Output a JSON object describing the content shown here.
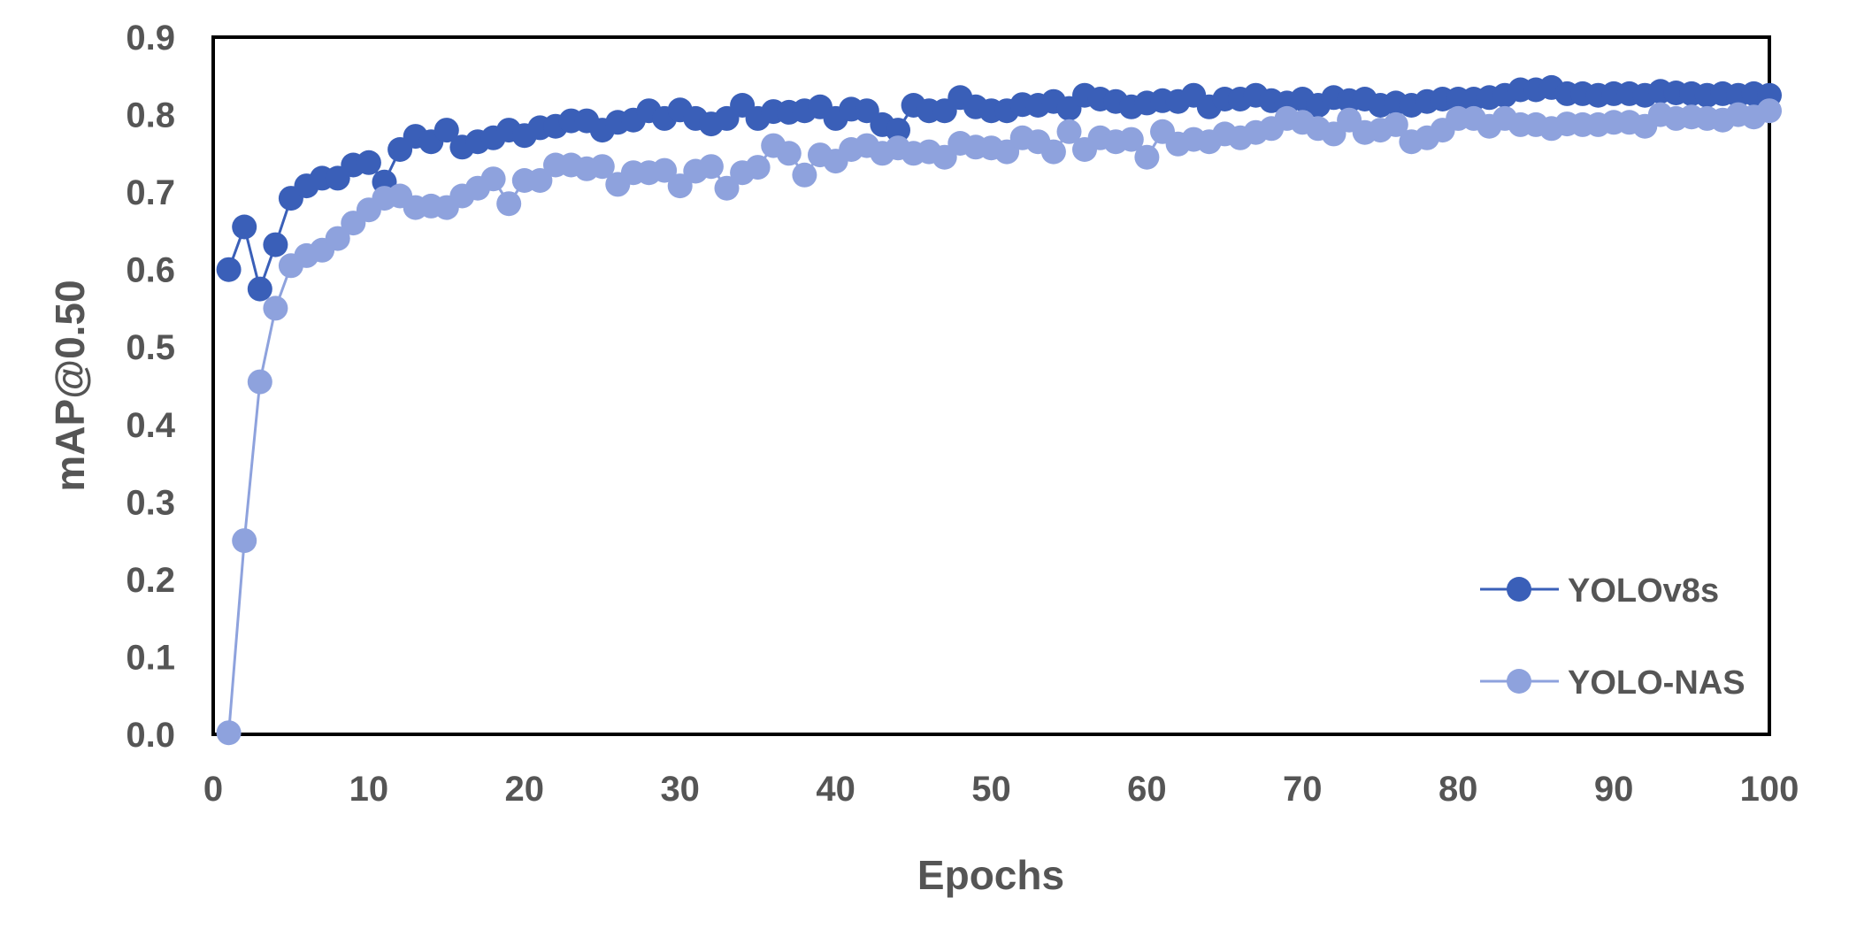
{
  "chart_data": {
    "type": "line",
    "xlabel": "Epochs",
    "ylabel": "mAP@0.50",
    "xlim": [
      0,
      100
    ],
    "ylim": [
      0,
      0.9
    ],
    "xticks": [
      "0",
      "10",
      "20",
      "30",
      "40",
      "50",
      "60",
      "70",
      "80",
      "90",
      "100"
    ],
    "yticks": [
      "0.0",
      "0.1",
      "0.2",
      "0.3",
      "0.4",
      "0.5",
      "0.6",
      "0.7",
      "0.8",
      "0.9"
    ],
    "legend_position": "bottom-right",
    "grid": false,
    "series": [
      {
        "name": "YOLOv8s",
        "color": "#3a5fb8",
        "x": [
          1,
          2,
          3,
          4,
          5,
          6,
          7,
          8,
          9,
          10,
          11,
          12,
          13,
          14,
          15,
          16,
          17,
          18,
          19,
          20,
          21,
          22,
          23,
          24,
          25,
          26,
          27,
          28,
          29,
          30,
          31,
          32,
          33,
          34,
          35,
          36,
          37,
          38,
          39,
          40,
          41,
          42,
          43,
          44,
          45,
          46,
          47,
          48,
          49,
          50,
          51,
          52,
          53,
          54,
          55,
          56,
          57,
          58,
          59,
          60,
          61,
          62,
          63,
          64,
          65,
          66,
          67,
          68,
          69,
          70,
          71,
          72,
          73,
          74,
          75,
          76,
          77,
          78,
          79,
          80,
          81,
          82,
          83,
          84,
          85,
          86,
          87,
          88,
          89,
          90,
          91,
          92,
          93,
          94,
          95,
          96,
          97,
          98,
          99,
          100
        ],
        "y": [
          0.6,
          0.655,
          0.575,
          0.632,
          0.692,
          0.708,
          0.718,
          0.718,
          0.735,
          0.738,
          0.713,
          0.755,
          0.772,
          0.765,
          0.78,
          0.758,
          0.765,
          0.77,
          0.78,
          0.773,
          0.783,
          0.785,
          0.792,
          0.792,
          0.78,
          0.79,
          0.793,
          0.805,
          0.795,
          0.806,
          0.795,
          0.788,
          0.795,
          0.812,
          0.795,
          0.804,
          0.803,
          0.805,
          0.81,
          0.795,
          0.807,
          0.805,
          0.787,
          0.78,
          0.812,
          0.805,
          0.805,
          0.822,
          0.81,
          0.805,
          0.805,
          0.813,
          0.812,
          0.817,
          0.808,
          0.825,
          0.82,
          0.817,
          0.81,
          0.815,
          0.818,
          0.817,
          0.825,
          0.81,
          0.82,
          0.82,
          0.825,
          0.818,
          0.815,
          0.82,
          0.812,
          0.822,
          0.818,
          0.82,
          0.812,
          0.815,
          0.812,
          0.817,
          0.82,
          0.82,
          0.82,
          0.822,
          0.825,
          0.832,
          0.832,
          0.835,
          0.827,
          0.827,
          0.825,
          0.827,
          0.827,
          0.825,
          0.83,
          0.828,
          0.827,
          0.825,
          0.827,
          0.825,
          0.827,
          0.825
        ]
      },
      {
        "name": "YOLO-NAS",
        "color": "#8ea2dd",
        "x": [
          1,
          2,
          3,
          4,
          5,
          6,
          7,
          8,
          9,
          10,
          11,
          12,
          13,
          14,
          15,
          16,
          17,
          18,
          19,
          20,
          21,
          22,
          23,
          24,
          25,
          26,
          27,
          28,
          29,
          30,
          31,
          32,
          33,
          34,
          35,
          36,
          37,
          38,
          39,
          40,
          41,
          42,
          43,
          44,
          45,
          46,
          47,
          48,
          49,
          50,
          51,
          52,
          53,
          54,
          55,
          56,
          57,
          58,
          59,
          60,
          61,
          62,
          63,
          64,
          65,
          66,
          67,
          68,
          69,
          70,
          71,
          72,
          73,
          74,
          75,
          76,
          77,
          78,
          79,
          80,
          81,
          82,
          83,
          84,
          85,
          86,
          87,
          88,
          89,
          90,
          91,
          92,
          93,
          94,
          95,
          96,
          97,
          98,
          99,
          100
        ],
        "y": [
          0.002,
          0.25,
          0.455,
          0.55,
          0.605,
          0.618,
          0.625,
          0.64,
          0.66,
          0.677,
          0.692,
          0.695,
          0.68,
          0.682,
          0.68,
          0.695,
          0.705,
          0.717,
          0.685,
          0.715,
          0.715,
          0.735,
          0.735,
          0.73,
          0.733,
          0.71,
          0.725,
          0.725,
          0.728,
          0.708,
          0.727,
          0.733,
          0.705,
          0.725,
          0.732,
          0.76,
          0.75,
          0.722,
          0.748,
          0.74,
          0.755,
          0.76,
          0.75,
          0.757,
          0.75,
          0.752,
          0.745,
          0.763,
          0.758,
          0.757,
          0.752,
          0.77,
          0.765,
          0.752,
          0.778,
          0.755,
          0.77,
          0.765,
          0.768,
          0.745,
          0.778,
          0.762,
          0.768,
          0.765,
          0.775,
          0.77,
          0.777,
          0.782,
          0.795,
          0.79,
          0.782,
          0.775,
          0.793,
          0.777,
          0.78,
          0.787,
          0.765,
          0.77,
          0.78,
          0.795,
          0.795,
          0.785,
          0.795,
          0.787,
          0.787,
          0.782,
          0.788,
          0.787,
          0.787,
          0.79,
          0.79,
          0.785,
          0.8,
          0.795,
          0.797,
          0.795,
          0.793,
          0.8,
          0.797,
          0.805
        ]
      }
    ]
  }
}
